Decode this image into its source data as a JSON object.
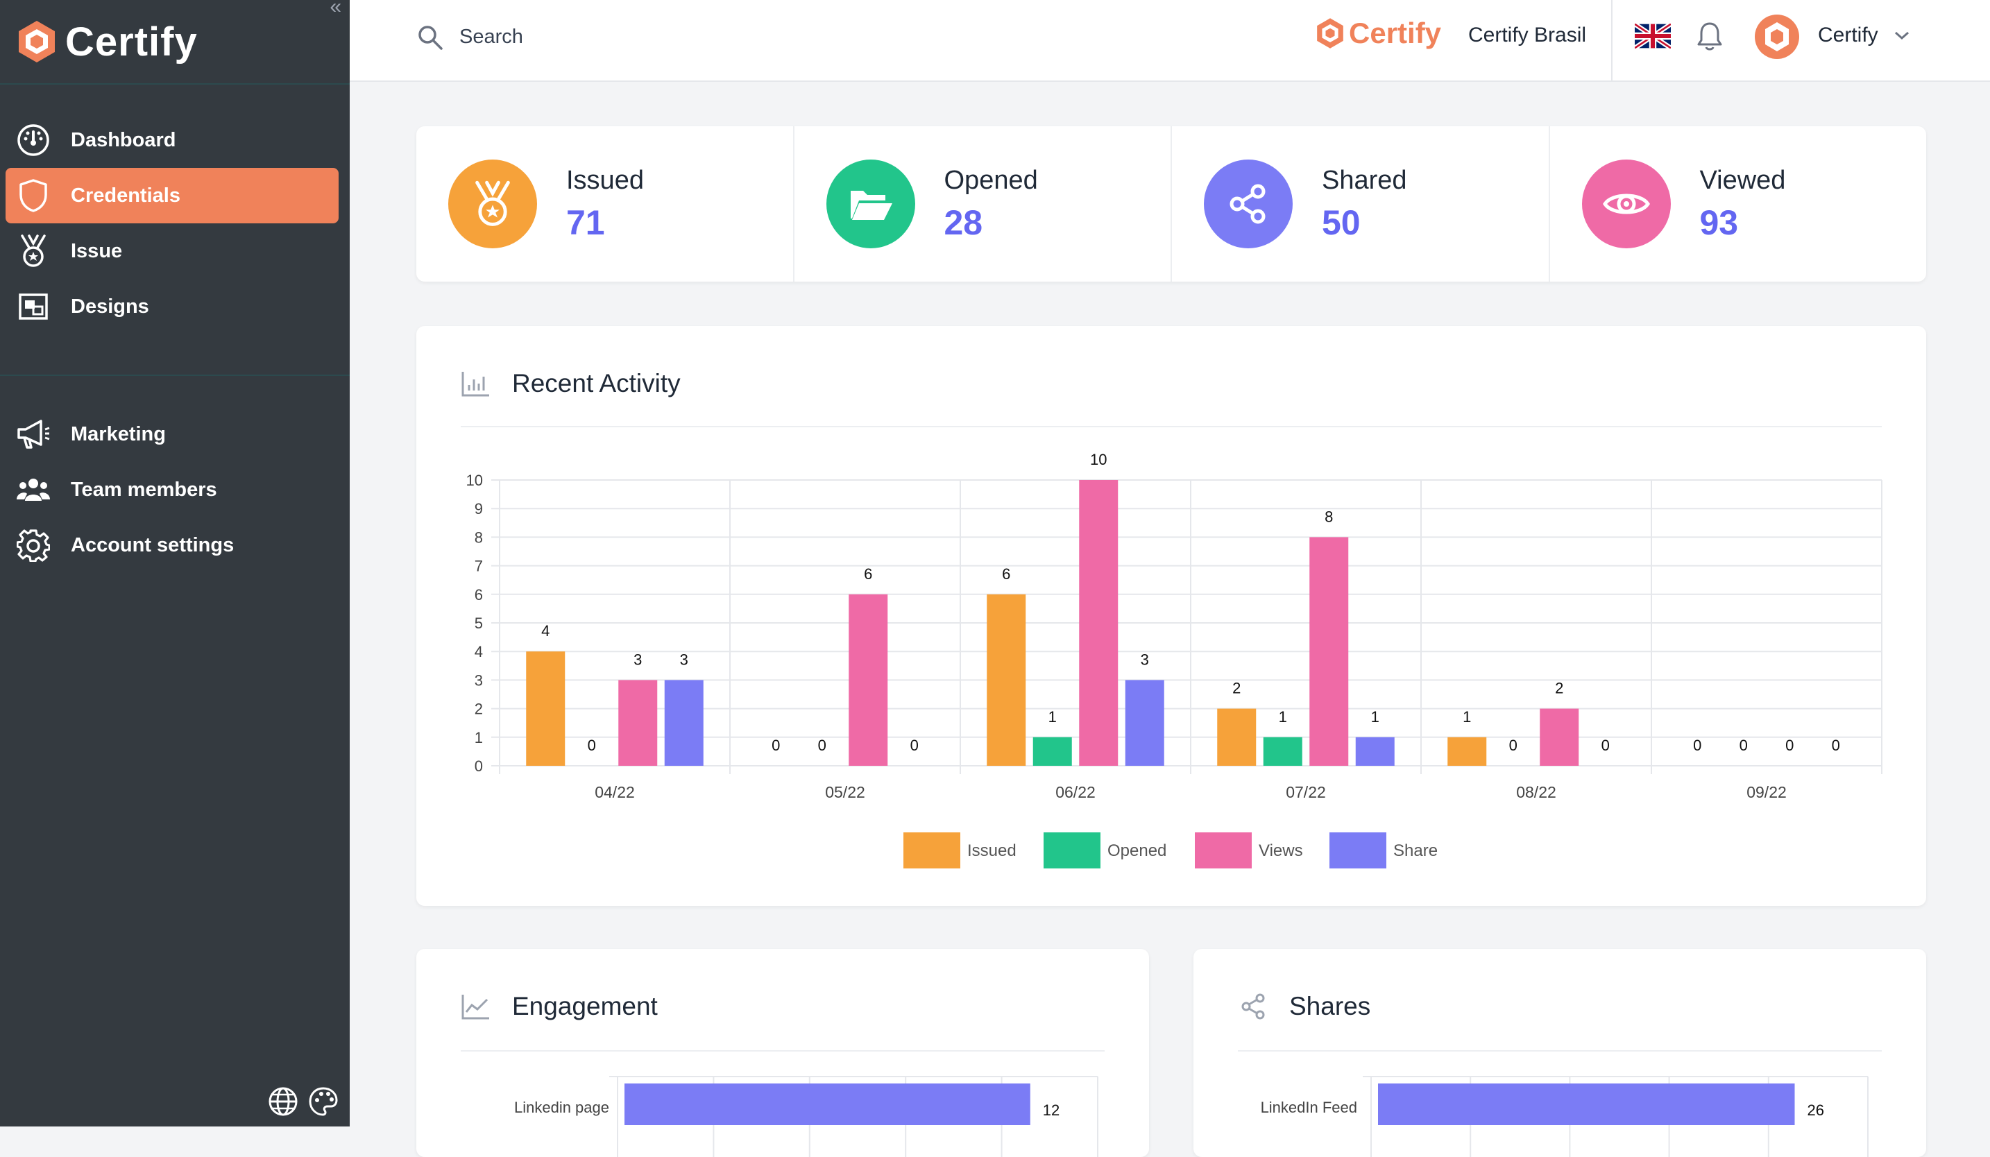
{
  "sidebar": {
    "brand": "Certify",
    "collapse_icon": "«",
    "items": [
      {
        "label": "Dashboard",
        "icon": "dashboard-icon",
        "active": false
      },
      {
        "label": "Credentials",
        "icon": "shield-icon",
        "active": true
      },
      {
        "label": "Issue",
        "icon": "medal-icon",
        "active": false
      },
      {
        "label": "Designs",
        "icon": "designs-icon",
        "active": false
      }
    ],
    "items2": [
      {
        "label": "Marketing",
        "icon": "megaphone-icon"
      },
      {
        "label": "Team members",
        "icon": "team-icon"
      },
      {
        "label": "Account settings",
        "icon": "gear-icon"
      }
    ]
  },
  "topbar": {
    "search_placeholder": "Search",
    "brand": "Certify",
    "org_name": "Certify Brasil",
    "user_name": "Certify"
  },
  "stats": [
    {
      "label": "Issued",
      "value": "71",
      "color": "#f6a23a",
      "icon": "medal-icon"
    },
    {
      "label": "Opened",
      "value": "28",
      "color": "#22c58b",
      "icon": "folder-open-icon"
    },
    {
      "label": "Shared",
      "value": "50",
      "color": "#7b7cf5",
      "icon": "share-icon"
    },
    {
      "label": "Viewed",
      "value": "93",
      "color": "#ef6aa6",
      "icon": "eye-icon"
    }
  ],
  "activity": {
    "title": "Recent Activity"
  },
  "engagement": {
    "title": "Engagement"
  },
  "shares": {
    "title": "Shares"
  },
  "colors": {
    "accent": "#f0825a",
    "sidebar": "#343a40",
    "value": "#6366f1"
  },
  "chart_data": [
    {
      "type": "bar",
      "title": "Recent Activity",
      "categories": [
        "04/22",
        "05/22",
        "06/22",
        "07/22",
        "08/22",
        "09/22"
      ],
      "series": [
        {
          "name": "Issued",
          "color": "#f6a23a",
          "values": [
            4,
            0,
            6,
            2,
            1,
            0
          ]
        },
        {
          "name": "Opened",
          "color": "#22c58b",
          "values": [
            0,
            0,
            1,
            1,
            0,
            0
          ]
        },
        {
          "name": "Views",
          "color": "#ef6aa6",
          "values": [
            3,
            6,
            10,
            8,
            2,
            0
          ]
        },
        {
          "name": "Share",
          "color": "#7b7cf5",
          "values": [
            3,
            0,
            3,
            1,
            0,
            0
          ]
        }
      ],
      "ylim": [
        0,
        10
      ],
      "yticks": [
        0,
        1,
        2,
        3,
        4,
        5,
        6,
        7,
        8,
        9,
        10
      ],
      "grid": true,
      "legend": "bottom"
    },
    {
      "type": "bar",
      "orientation": "horizontal",
      "title": "Engagement",
      "categories": [
        "Linkedin page"
      ],
      "values": [
        12
      ],
      "color": "#7b7cf5"
    },
    {
      "type": "bar",
      "orientation": "horizontal",
      "title": "Shares",
      "categories": [
        "LinkedIn Feed"
      ],
      "values": [
        26
      ],
      "color": "#7b7cf5"
    }
  ]
}
